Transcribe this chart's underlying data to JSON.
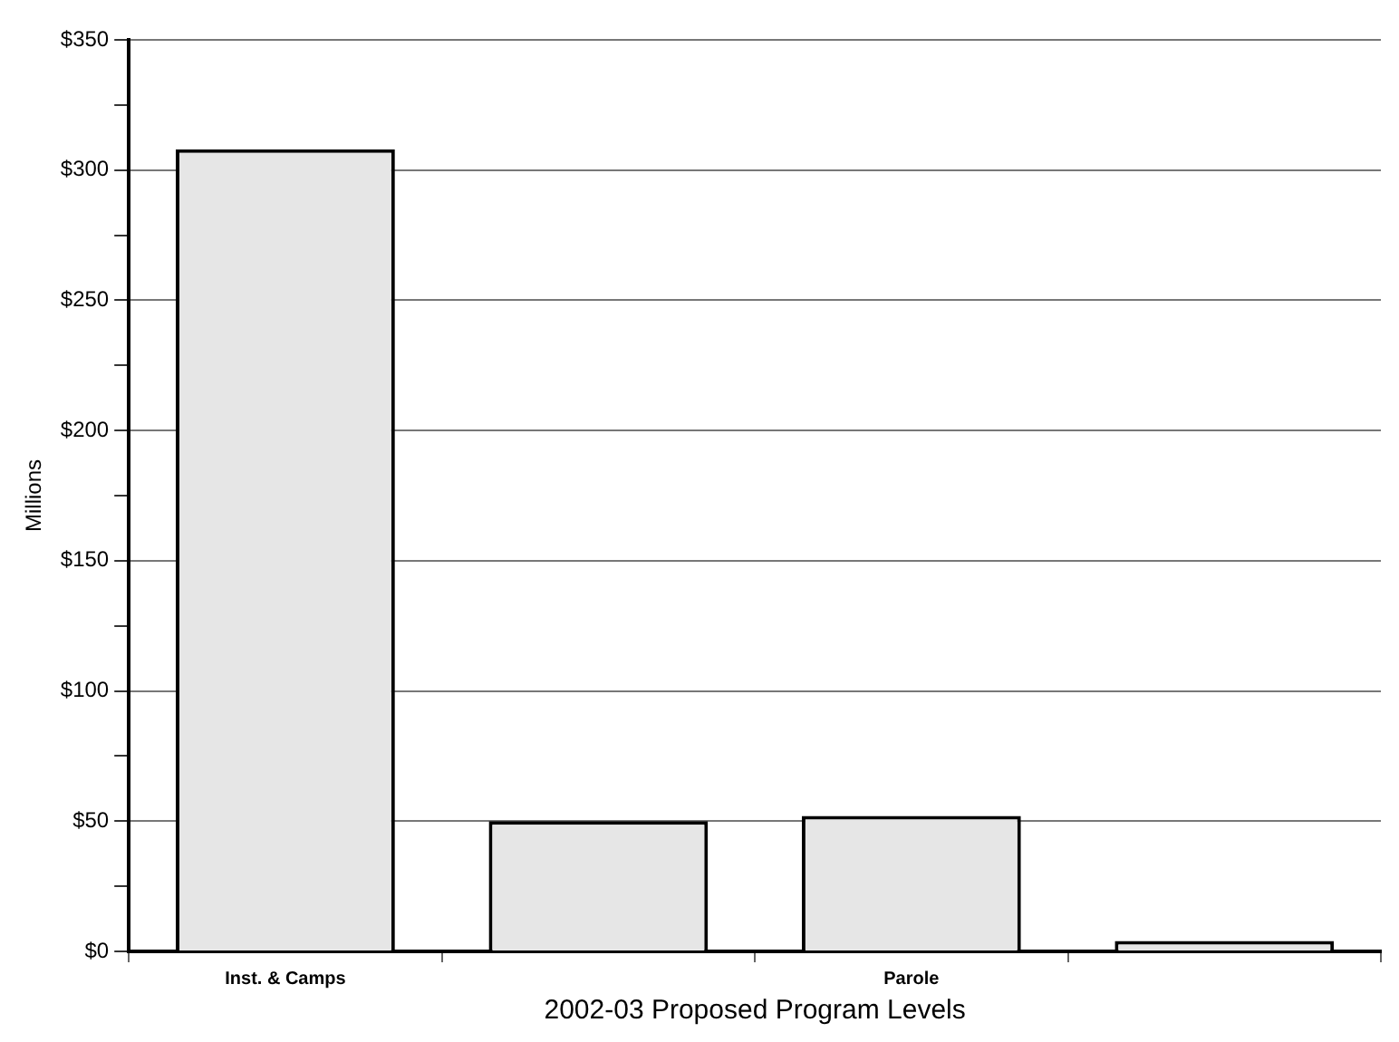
{
  "chart_data": {
    "type": "bar",
    "xlabel": "2002-03 Proposed Program Levels",
    "ylabel": "Millions",
    "categories": [
      "Inst. & Camps",
      null,
      "Parole",
      null
    ],
    "values": [
      308,
      50,
      52,
      4
    ],
    "color": "#e6e6e6",
    "ylim": [
      0,
      350
    ],
    "yticks": [
      {
        "value": 0,
        "label": "$0"
      },
      {
        "value": 25,
        "label": null
      },
      {
        "value": 50,
        "label": "$50"
      },
      {
        "value": 75,
        "label": null
      },
      {
        "value": 100,
        "label": "$100"
      },
      {
        "value": 125,
        "label": null
      },
      {
        "value": 150,
        "label": "$150"
      },
      {
        "value": 175,
        "label": null
      },
      {
        "value": 200,
        "label": "$200"
      },
      {
        "value": 225,
        "label": null
      },
      {
        "value": 250,
        "label": "$250"
      },
      {
        "value": 275,
        "label": null
      },
      {
        "value": 300,
        "label": "$300"
      },
      {
        "value": 325,
        "label": null
      },
      {
        "value": 350,
        "label": "$350"
      }
    ],
    "grid": "y",
    "legend": false
  }
}
